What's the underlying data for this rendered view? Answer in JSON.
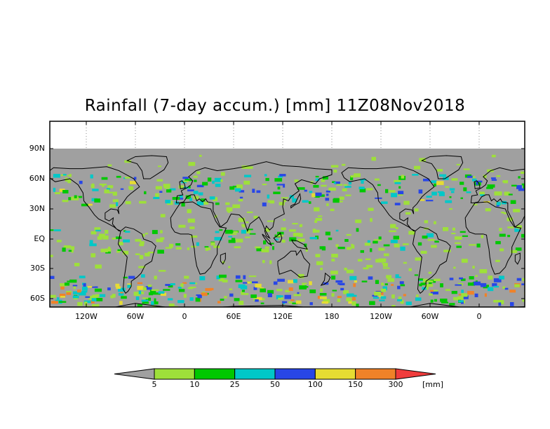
{
  "title": "Rainfall (7-day accum.) [mm] 11Z08Nov2018",
  "map": {
    "lon_labels": [
      "120W",
      "60W",
      "0",
      "60E",
      "120E",
      "180",
      "120W",
      "60W",
      "0"
    ],
    "lat_labels": [
      "90N",
      "60N",
      "30N",
      "EQ",
      "30S",
      "60S"
    ]
  },
  "colorbar": {
    "values": [
      "5",
      "10",
      "25",
      "50",
      "100",
      "150",
      "300"
    ],
    "units": "[mm]",
    "colors": [
      "#a0a0a0",
      "#9ee03a",
      "#00c800",
      "#00c8c8",
      "#2846e6",
      "#e6dc32",
      "#f08228",
      "#f03c3c"
    ]
  },
  "colors": {
    "land_outline": "#000000",
    "no_rain": "#a0a0a0",
    "frame": "#000000"
  }
}
